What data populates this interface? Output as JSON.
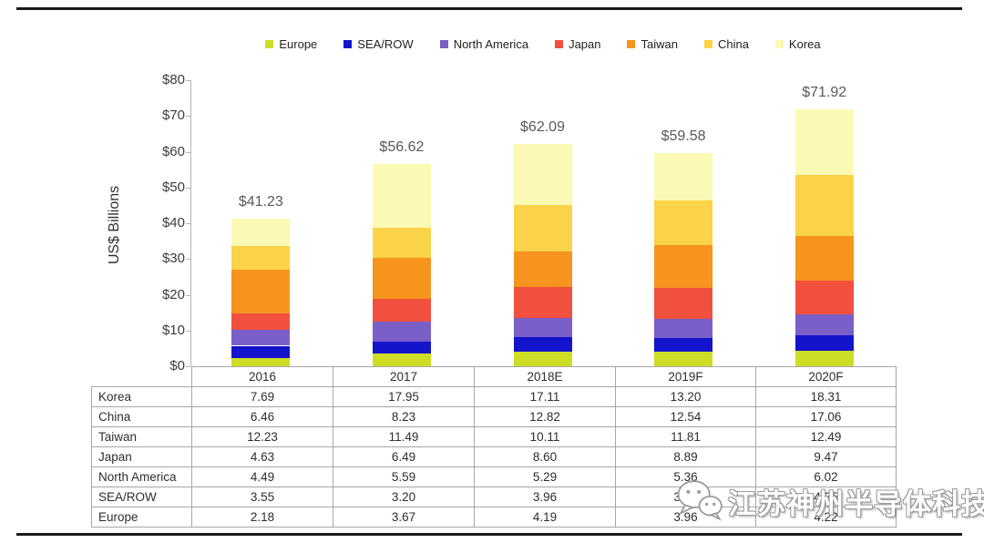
{
  "chart_data": {
    "type": "bar",
    "stacked": true,
    "categories": [
      "2016",
      "2017",
      "2018E",
      "2019F",
      "2020F"
    ],
    "series": [
      {
        "name": "Europe",
        "color": "#cedd26",
        "values": [
          2.18,
          3.67,
          4.19,
          3.96,
          4.22
        ]
      },
      {
        "name": "SEA/ROW",
        "color": "#1414cc",
        "values": [
          3.55,
          3.2,
          3.96,
          3.82,
          4.35
        ]
      },
      {
        "name": "North America",
        "color": "#7b5fc8",
        "values": [
          4.49,
          5.59,
          5.29,
          5.36,
          6.02
        ]
      },
      {
        "name": "Japan",
        "color": "#f2503e",
        "values": [
          4.63,
          6.49,
          8.6,
          8.89,
          9.47
        ]
      },
      {
        "name": "Taiwan",
        "color": "#f7941e",
        "values": [
          12.23,
          11.49,
          10.11,
          11.81,
          12.49
        ]
      },
      {
        "name": "China",
        "color": "#fbd348",
        "values": [
          6.46,
          8.23,
          12.82,
          12.54,
          17.06
        ]
      },
      {
        "name": "Korea",
        "color": "#fbfab4",
        "values": [
          7.69,
          17.95,
          17.11,
          13.2,
          18.31
        ]
      }
    ],
    "totals": [
      "$41.23",
      "$56.62",
      "$62.09",
      "$59.58",
      "$71.92"
    ],
    "title": "",
    "xlabel": "",
    "ylabel": "US$ Billions",
    "ylim": [
      0,
      80
    ],
    "y_ticks": [
      "$0",
      "$10",
      "$20",
      "$30",
      "$40",
      "$50",
      "$60",
      "$70",
      "$80"
    ],
    "legend_position": "top",
    "grid": false
  },
  "table": {
    "corner": "",
    "columns": [
      "2016",
      "2017",
      "2018E",
      "2019F",
      "2020F"
    ],
    "rows": [
      {
        "label": "Korea",
        "values": [
          "7.69",
          "17.95",
          "17.11",
          "13.20",
          "18.31"
        ]
      },
      {
        "label": "China",
        "values": [
          "6.46",
          "8.23",
          "12.82",
          "12.54",
          "17.06"
        ]
      },
      {
        "label": "Taiwan",
        "values": [
          "12.23",
          "11.49",
          "10.11",
          "11.81",
          "12.49"
        ]
      },
      {
        "label": "Japan",
        "values": [
          "4.63",
          "6.49",
          "8.60",
          "8.89",
          "9.47"
        ]
      },
      {
        "label": "North America",
        "values": [
          "4.49",
          "5.59",
          "5.29",
          "5.36",
          "6.02"
        ]
      },
      {
        "label": "SEA/ROW",
        "values": [
          "3.55",
          "3.20",
          "3.96",
          "3.82",
          "4.35"
        ]
      },
      {
        "label": "Europe",
        "values": [
          "2.18",
          "3.67",
          "4.19",
          "3.96",
          "4.22"
        ]
      }
    ]
  },
  "watermark": {
    "text": "江苏神州半导体科技",
    "icon": "wechat-icon"
  }
}
